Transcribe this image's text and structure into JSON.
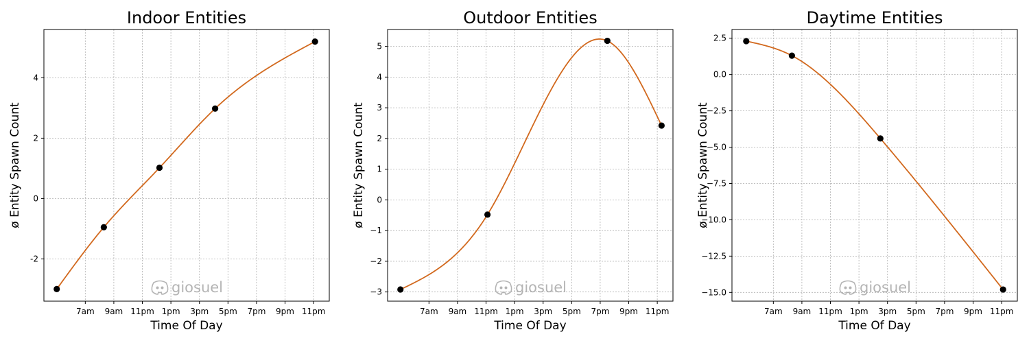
{
  "chart_data": [
    {
      "type": "line",
      "title": "Indoor Entities",
      "xlabel": "Time Of Day",
      "ylabel": "ø Entity Spawn Count",
      "xticks": [
        "7am",
        "9am",
        "11pm",
        "1pm",
        "3pm",
        "5pm",
        "7pm",
        "9pm",
        "11pm"
      ],
      "xlim": [
        0,
        10
      ],
      "ylim": [
        -3.4,
        5.6
      ],
      "yticks": [
        -2,
        0,
        2,
        4
      ],
      "ytick_labels": [
        "-2",
        "0",
        "2",
        "4"
      ],
      "grid": true,
      "points": {
        "x": [
          0.45,
          2.1,
          4.05,
          6.0,
          9.5
        ],
        "y": [
          -3.0,
          -0.95,
          1.02,
          2.98,
          5.2
        ]
      },
      "watermark": "giosuel"
    },
    {
      "type": "line",
      "title": "Outdoor Entities",
      "xlabel": "Time Of Day",
      "ylabel": "ø Entity Spawn Count",
      "xticks": [
        "7am",
        "9am",
        "11pm",
        "1pm",
        "3pm",
        "5pm",
        "7pm",
        "9pm",
        "11pm"
      ],
      "xlim": [
        0,
        10
      ],
      "ylim": [
        -3.3,
        5.55
      ],
      "yticks": [
        -3,
        -2,
        -1,
        0,
        1,
        2,
        3,
        4,
        5
      ],
      "ytick_labels": [
        "−3",
        "−2",
        "−1",
        "0",
        "1",
        "2",
        "3",
        "4",
        "5"
      ],
      "grid": true,
      "points": {
        "x": [
          0.45,
          3.5,
          7.7,
          9.6
        ],
        "y": [
          -2.92,
          -0.48,
          5.18,
          2.42
        ]
      },
      "watermark": "giosuel"
    },
    {
      "type": "line",
      "title": "Daytime Entities",
      "xlabel": "Time Of Day",
      "ylabel": "ø Entity Spawn Count",
      "xticks": [
        "7am",
        "9am",
        "11pm",
        "1pm",
        "3pm",
        "5pm",
        "7pm",
        "9pm",
        "11pm"
      ],
      "xlim": [
        0,
        10
      ],
      "ylim": [
        -15.6,
        3.1
      ],
      "yticks": [
        2.5,
        0.0,
        -2.5,
        -5.0,
        -7.5,
        -10.0,
        -12.5,
        -15.0
      ],
      "ytick_labels": [
        "2.5",
        "0.0",
        "−2.5",
        "−5.0",
        "−7.5",
        "−10.0",
        "−12.5",
        "−15.0"
      ],
      "grid": true,
      "points": {
        "x": [
          0.5,
          2.1,
          5.2,
          9.5
        ],
        "y": [
          2.3,
          1.3,
          -4.4,
          -14.8
        ]
      },
      "watermark": "giosuel"
    }
  ],
  "colors": {
    "line": "#d2691e",
    "marker": "#000000",
    "grid": "#b0b0b0",
    "watermark": "#a8a8a8"
  },
  "icons": {
    "watermark": "discord-icon"
  }
}
